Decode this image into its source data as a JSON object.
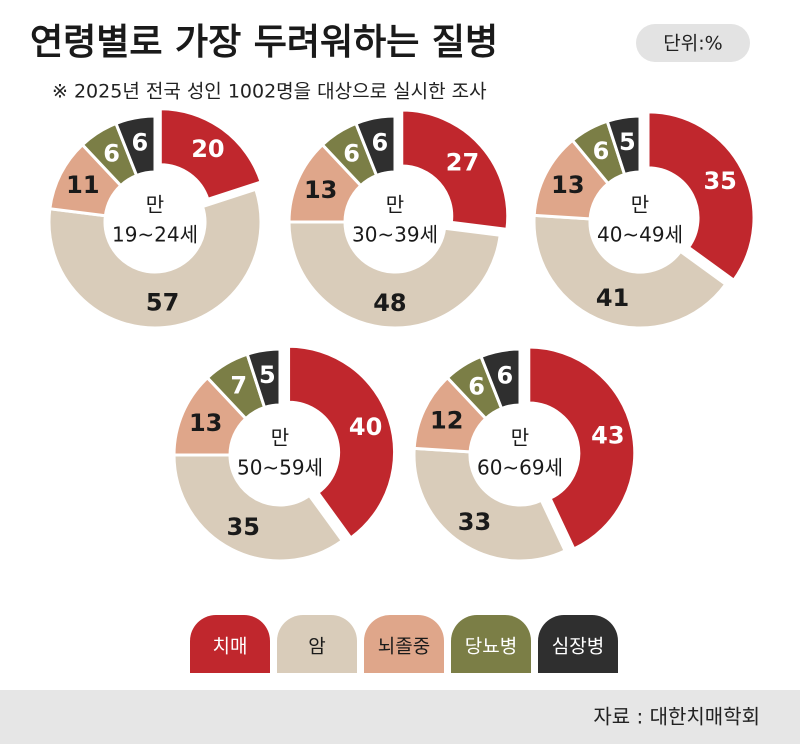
{
  "header": {
    "title": "연령별로 가장 두려워하는 질병",
    "unit": "단위:%",
    "note": "※ 2025년 전국 성인 1002명을 대상으로 실시한 조사"
  },
  "chart_data": [
    {
      "type": "donut",
      "center_label": [
        "만",
        "19~24세"
      ],
      "categories": [
        "치매",
        "암",
        "뇌졸중",
        "당뇨병",
        "심장병"
      ],
      "colors": [
        "#c0272d",
        "#d9ccba",
        "#dfa68a",
        "#7b7e46",
        "#2f2f2f"
      ],
      "values": [
        20,
        57,
        11,
        6,
        6
      ]
    },
    {
      "type": "donut",
      "center_label": [
        "만",
        "30~39세"
      ],
      "categories": [
        "치매",
        "암",
        "뇌졸중",
        "당뇨병",
        "심장병"
      ],
      "colors": [
        "#c0272d",
        "#d9ccba",
        "#dfa68a",
        "#7b7e46",
        "#2f2f2f"
      ],
      "values": [
        27,
        48,
        13,
        6,
        6
      ]
    },
    {
      "type": "donut",
      "center_label": [
        "만",
        "40~49세"
      ],
      "categories": [
        "치매",
        "암",
        "뇌졸중",
        "당뇨병",
        "심장병"
      ],
      "colors": [
        "#c0272d",
        "#d9ccba",
        "#dfa68a",
        "#7b7e46",
        "#2f2f2f"
      ],
      "values": [
        35,
        41,
        13,
        6,
        5
      ]
    },
    {
      "type": "donut",
      "center_label": [
        "만",
        "50~59세"
      ],
      "categories": [
        "치매",
        "암",
        "뇌졸중",
        "당뇨병",
        "심장병"
      ],
      "colors": [
        "#c0272d",
        "#d9ccba",
        "#dfa68a",
        "#7b7e46",
        "#2f2f2f"
      ],
      "values": [
        40,
        35,
        13,
        7,
        5
      ]
    },
    {
      "type": "donut",
      "center_label": [
        "만",
        "60~69세"
      ],
      "categories": [
        "치매",
        "암",
        "뇌졸중",
        "당뇨병",
        "심장병"
      ],
      "colors": [
        "#c0272d",
        "#d9ccba",
        "#dfa68a",
        "#7b7e46",
        "#2f2f2f"
      ],
      "values": [
        43,
        33,
        12,
        6,
        6
      ]
    }
  ],
  "source": "자료 : 대한치매학회"
}
